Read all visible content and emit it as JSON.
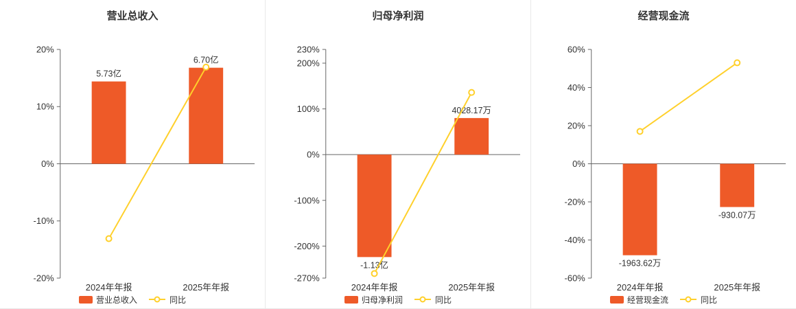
{
  "colors": {
    "bar": "#ee5a28",
    "line": "#ffd02b",
    "axis": "#666666",
    "text": "#333333",
    "divider": "#e8e8e8",
    "background": "#ffffff"
  },
  "chart_data": [
    {
      "type": "bar",
      "title": "营业总收入",
      "categories": [
        "2024年年报",
        "2025年年报"
      ],
      "y_axis": {
        "unit": "%",
        "min": -20,
        "max": 20,
        "ticks": [
          20,
          10,
          0,
          -10,
          -20
        ]
      },
      "bar_series": {
        "name": "营业总收入",
        "value_labels": [
          "5.73亿",
          "6.70亿"
        ],
        "plotted_pct": [
          14.4,
          16.8
        ]
      },
      "line_series": {
        "name": "同比",
        "values_pct": [
          -13.1,
          16.9
        ]
      },
      "legend": [
        "营业总收入",
        "同比"
      ],
      "legend_position": "bottom",
      "grid": false
    },
    {
      "type": "bar",
      "title": "归母净利润",
      "categories": [
        "2024年年报",
        "2025年年报"
      ],
      "y_axis": {
        "unit": "%",
        "min": -270,
        "max": 230,
        "ticks": [
          230,
          200,
          100,
          0,
          -100,
          -200,
          -270
        ]
      },
      "bar_series": {
        "name": "归母净利润",
        "value_labels": [
          "-1.13亿",
          "4028.17万"
        ],
        "plotted_pct": [
          -224,
          80
        ]
      },
      "line_series": {
        "name": "同比",
        "values_pct": [
          -260,
          136
        ]
      },
      "legend": [
        "归母净利润",
        "同比"
      ],
      "legend_position": "bottom",
      "grid": false
    },
    {
      "type": "bar",
      "title": "经营现金流",
      "categories": [
        "2024年年报",
        "2025年年报"
      ],
      "y_axis": {
        "unit": "%",
        "min": -60,
        "max": 60,
        "ticks": [
          60,
          40,
          20,
          0,
          -20,
          -40,
          -60
        ]
      },
      "bar_series": {
        "name": "经营现金流",
        "value_labels": [
          "-1963.62万",
          "-930.07万"
        ],
        "plotted_pct": [
          -48,
          -22.7
        ]
      },
      "line_series": {
        "name": "同比",
        "values_pct": [
          17,
          53
        ]
      },
      "legend": [
        "经营现金流",
        "同比"
      ],
      "legend_position": "bottom",
      "grid": false
    }
  ]
}
